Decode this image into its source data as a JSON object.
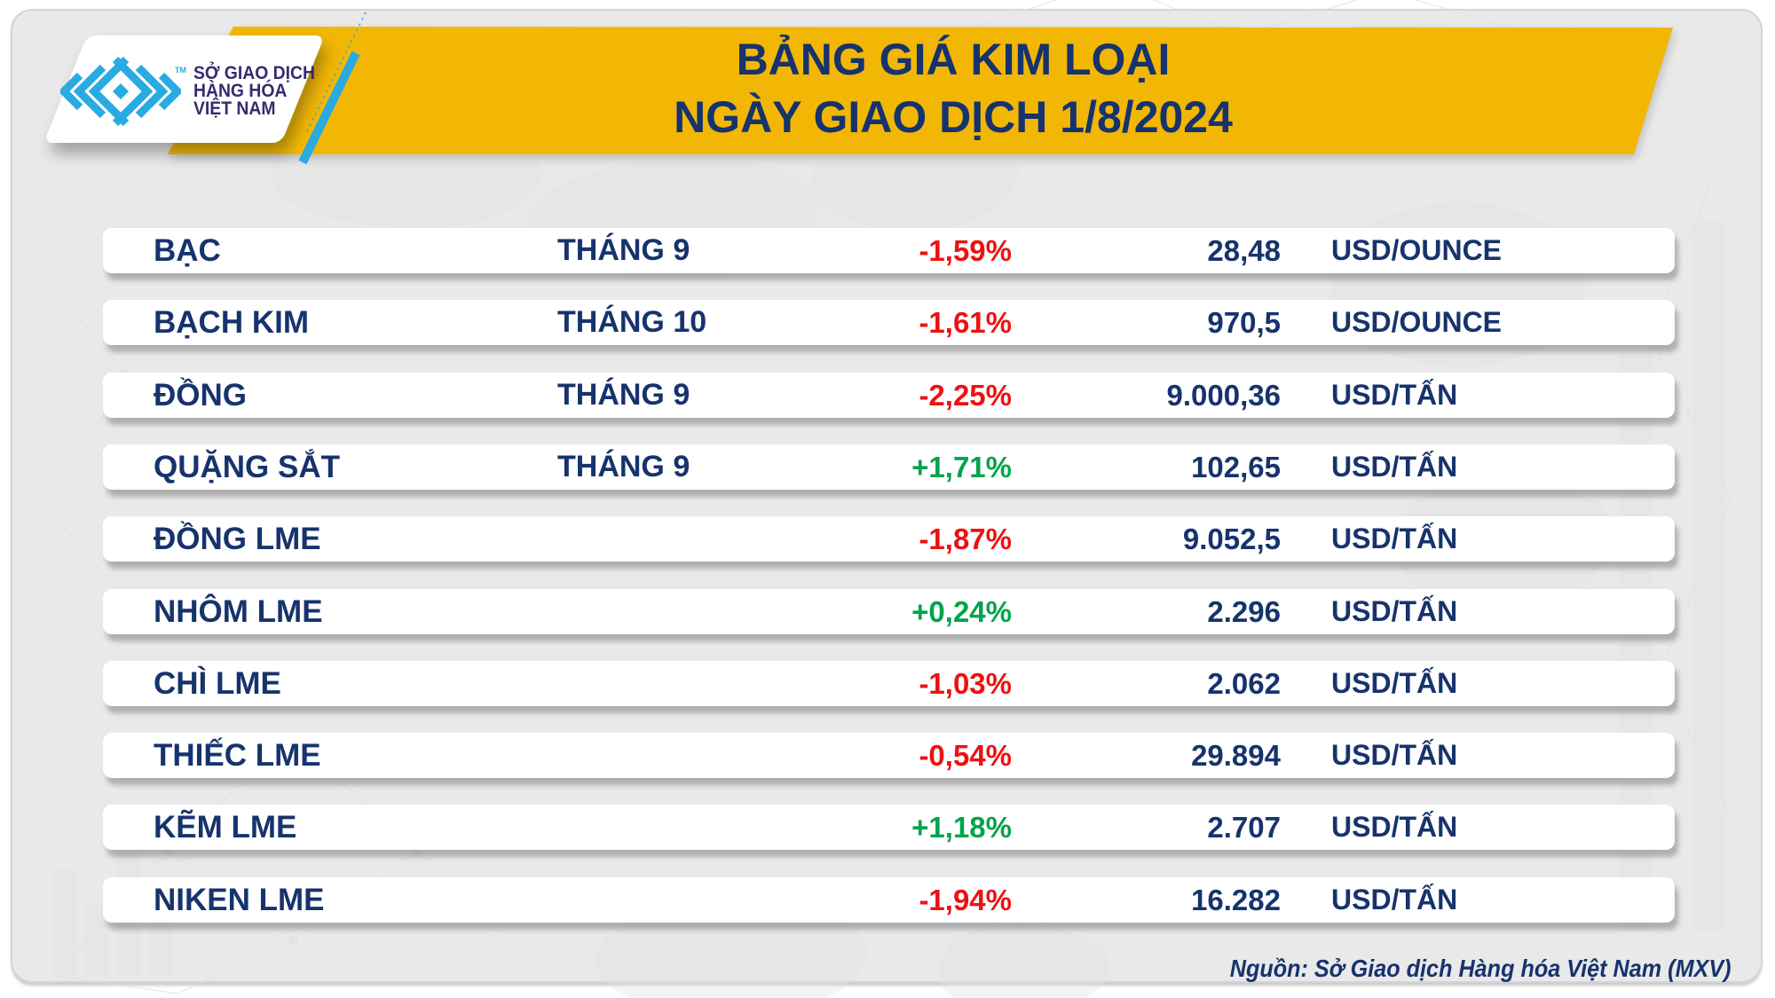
{
  "header": {
    "logo": {
      "text_lines": [
        "SỞ GIAO DỊCH",
        "HÀNG HÓA",
        "VIỆT NAM"
      ],
      "trademark": "TM"
    },
    "title_line1": "BẢNG GIÁ KIM LOẠI",
    "title_line2": "NGÀY GIAO DỊCH 1/8/2024"
  },
  "table": {
    "rows": [
      {
        "name": "BẠC",
        "month": "THÁNG 9",
        "change": "-1,59%",
        "direction": "down",
        "price": "28,48",
        "unit": "USD/OUNCE"
      },
      {
        "name": "BẠCH KIM",
        "month": "THÁNG 10",
        "change": "-1,61%",
        "direction": "down",
        "price": "970,5",
        "unit": "USD/OUNCE"
      },
      {
        "name": "ĐỒNG",
        "month": "THÁNG 9",
        "change": "-2,25%",
        "direction": "down",
        "price": "9.000,36",
        "unit": "USD/TẤN"
      },
      {
        "name": "QUẶNG SẮT",
        "month": "THÁNG 9",
        "change": "+1,71%",
        "direction": "up",
        "price": "102,65",
        "unit": "USD/TẤN"
      },
      {
        "name": "ĐỒNG LME",
        "month": "",
        "change": "-1,87%",
        "direction": "down",
        "price": "9.052,5",
        "unit": "USD/TẤN"
      },
      {
        "name": "NHÔM LME",
        "month": "",
        "change": "+0,24%",
        "direction": "up",
        "price": "2.296",
        "unit": "USD/TẤN"
      },
      {
        "name": "CHÌ LME",
        "month": "",
        "change": "-1,03%",
        "direction": "down",
        "price": "2.062",
        "unit": "USD/TẤN"
      },
      {
        "name": "THIẾC LME",
        "month": "",
        "change": "-0,54%",
        "direction": "down",
        "price": "29.894",
        "unit": "USD/TẤN"
      },
      {
        "name": "KẼM LME",
        "month": "",
        "change": "+1,18%",
        "direction": "up",
        "price": "2.707",
        "unit": "USD/TẤN"
      },
      {
        "name": "NIKEN LME",
        "month": "",
        "change": "-1,94%",
        "direction": "down",
        "price": "16.282",
        "unit": "USD/TẤN"
      }
    ]
  },
  "footer": {
    "source": "Nguồn: Sở Giao dịch Hàng hóa Việt Nam (MXV)"
  },
  "colors": {
    "banner_yellow": "#F2B705",
    "navy": "#16336D",
    "red": "#EE1111",
    "green": "#00A44C",
    "cyan": "#29ABE2",
    "logo_indigo": "#352C6E"
  }
}
